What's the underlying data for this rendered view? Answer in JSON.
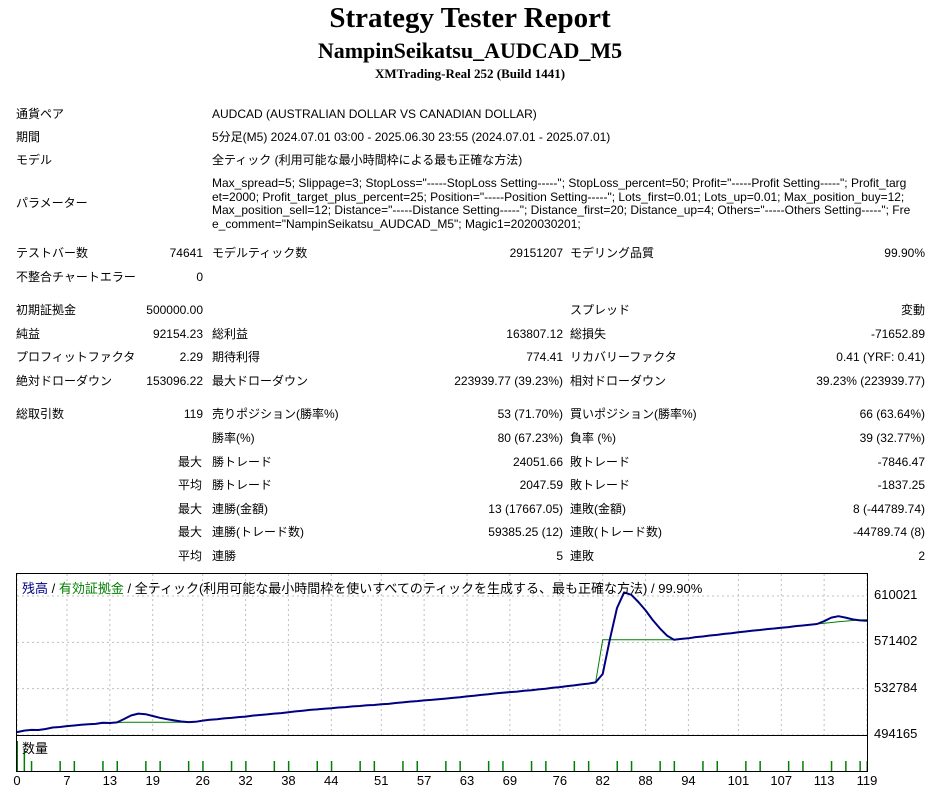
{
  "report": {
    "title": "Strategy Tester Report",
    "subtitle": "NampinSeikatsu_AUDCAD_M5",
    "server": "XMTrading-Real 252 (Build 1441)"
  },
  "info": {
    "symbol_label": "通貨ペア",
    "symbol_value": "AUDCAD (AUSTRALIAN DOLLAR VS CANADIAN DOLLAR)",
    "period_label": "期間",
    "period_value": "5分足(M5) 2024.07.01 03:00 - 2025.06.30 23:55 (2024.07.01 - 2025.07.01)",
    "model_label": "モデル",
    "model_value": "全ティック (利用可能な最小時間枠による最も正確な方法)",
    "params_label": "パラメーター",
    "params_value": "Max_spread=5; Slippage=3; StopLoss=\"-----StopLoss Setting-----\"; StopLoss_percent=50; Profit=\"-----Profit Setting-----\"; Profit_target=2000; Profit_target_plus_percent=25; Position=\"-----Position Setting-----\"; Lots_first=0.01; Lots_up=0.01; Max_position_buy=12; Max_position_sell=12; Distance=\"-----Distance Setting-----\"; Distance_first=20; Distance_up=4; Others=\"-----Others Setting-----\"; Free_comment=\"NampinSeikatsu_AUDCAD_M5\"; Magic1=2020030201;"
  },
  "stats": {
    "bars_label": "テストバー数",
    "bars_value": "74641",
    "ticks_label": "モデルティック数",
    "ticks_value": "29151207",
    "quality_label": "モデリング品質",
    "quality_value": "99.90%",
    "mismatch_label": "不整合チャートエラー",
    "mismatch_value": "0",
    "deposit_label": "初期証拠金",
    "deposit_value": "500000.00",
    "spread_label": "スプレッド",
    "spread_value": "変動",
    "net_label": "純益",
    "net_value": "92154.23",
    "gross_profit_label": "総利益",
    "gross_profit_value": "163807.12",
    "gross_loss_label": "総損失",
    "gross_loss_value": "-71652.89",
    "pf_label": "プロフィットファクタ",
    "pf_value": "2.29",
    "payoff_label": "期待利得",
    "payoff_value": "774.41",
    "recovery_label": "リカバリーファクタ",
    "recovery_value": "0.41 (YRF: 0.41)",
    "abs_dd_label": "絶対ドローダウン",
    "abs_dd_value": "153096.22",
    "max_dd_label": "最大ドローダウン",
    "max_dd_value": "223939.77 (39.23%)",
    "rel_dd_label": "相対ドローダウン",
    "rel_dd_value": "39.23% (223939.77)",
    "trades_label": "総取引数",
    "trades_value": "119",
    "short_label": "売りポジション(勝率%)",
    "short_value": "53 (71.70%)",
    "long_label": "買いポジション(勝率%)",
    "long_value": "66 (63.64%)",
    "win_label": "勝率(%)",
    "win_value": "80 (67.23%)",
    "loss_label": "負率 (%)",
    "loss_value": "39 (32.77%)",
    "max_label": "最大",
    "avg_label": "平均",
    "largest_win_label": "勝トレード",
    "largest_win_value": "24051.66",
    "largest_loss_label": "敗トレード",
    "largest_loss_value": "-7846.47",
    "avg_win_label": "勝トレード",
    "avg_win_value": "2047.59",
    "avg_loss_label": "敗トレード",
    "avg_loss_value": "-1837.25",
    "cons_win_amt_label": "連勝(金額)",
    "cons_win_amt_value": "13 (17667.05)",
    "cons_loss_amt_label": "連敗(金額)",
    "cons_loss_amt_value": "8 (-44789.74)",
    "cons_win_trd_label": "連勝(トレード数)",
    "cons_win_trd_value": "59385.25 (12)",
    "cons_loss_trd_label": "連敗(トレード数)",
    "cons_loss_trd_value": "-44789.74 (8)",
    "avg_cons_win_label": "連勝",
    "avg_cons_win_value": "5",
    "avg_cons_loss_label": "連敗",
    "avg_cons_loss_value": "2"
  },
  "chart_data": {
    "type": "line",
    "legend": {
      "balance": "残高",
      "sep1": " / ",
      "equity": "有効証拠金",
      "sep2": " / ",
      "desc": "全ティック(利用可能な最小時間枠を使いすべてのティックを生成する、最も正確な方法) / 99.90%"
    },
    "colors": {
      "balance": "#000080",
      "equity": "#008000",
      "volume": "#008000",
      "grid": "#bfbfbf"
    },
    "ylim": [
      494165,
      610021
    ],
    "y_ticks": [
      "610021",
      "571402",
      "532784",
      "494165"
    ],
    "x_ticks": [
      "0",
      "7",
      "13",
      "19",
      "26",
      "32",
      "38",
      "44",
      "51",
      "57",
      "63",
      "69",
      "76",
      "82",
      "88",
      "94",
      "101",
      "107",
      "113",
      "119"
    ],
    "volume_label": "数量",
    "series": [
      {
        "name": "残高",
        "x": [
          0,
          1,
          2,
          3,
          4,
          5,
          6,
          7,
          8,
          9,
          10,
          11,
          12,
          13,
          14,
          15,
          16,
          17,
          18,
          19,
          20,
          21,
          22,
          23,
          24,
          25,
          26,
          27,
          28,
          29,
          30,
          31,
          32,
          33,
          34,
          35,
          36,
          37,
          38,
          39,
          40,
          41,
          42,
          43,
          44,
          45,
          46,
          47,
          48,
          49,
          50,
          51,
          52,
          53,
          54,
          55,
          56,
          57,
          58,
          59,
          60,
          61,
          62,
          63,
          64,
          65,
          66,
          67,
          68,
          69,
          70,
          71,
          72,
          73,
          74,
          75,
          76,
          77,
          78,
          79,
          80,
          81,
          82,
          83,
          84,
          85,
          86,
          87,
          88,
          89,
          90,
          91,
          92,
          93,
          94,
          95,
          96,
          97,
          98,
          99,
          100,
          101,
          102,
          103,
          104,
          105,
          106,
          107,
          108,
          109,
          110,
          111,
          112,
          113,
          114,
          115,
          116,
          117,
          118,
          119
        ],
        "values": [
          496500,
          497800,
          498200,
          498600,
          499200,
          500400,
          500800,
          501500,
          502100,
          502600,
          503000,
          503400,
          503800,
          504200,
          504500,
          504800,
          504800,
          504800,
          504800,
          504800,
          504800,
          504800,
          504800,
          504800,
          504800,
          505200,
          506200,
          506800,
          507300,
          507800,
          508400,
          509000,
          509500,
          510200,
          510800,
          511300,
          511800,
          512400,
          513100,
          513800,
          514400,
          515000,
          515500,
          516000,
          516500,
          517000,
          517400,
          517900,
          518300,
          518700,
          519200,
          519700,
          520100,
          520700,
          521300,
          521900,
          522400,
          522900,
          523400,
          523900,
          524500,
          525000,
          525600,
          526200,
          526900,
          527500,
          528100,
          528700,
          529300,
          529800,
          530300,
          530900,
          531500,
          532100,
          532700,
          533400,
          534100,
          534800,
          535500,
          536200,
          537000,
          537800,
          573500,
          573500,
          573500,
          573500,
          573500,
          573500,
          573500,
          573500,
          573500,
          573500,
          573500,
          574000,
          574800,
          575700,
          576300,
          577000,
          577600,
          578300,
          579000,
          579700,
          580400,
          581100,
          581700,
          582300,
          582900,
          583500,
          584100,
          584800,
          585400,
          586000,
          586700,
          587300,
          587900,
          588500,
          589100,
          589600,
          590100,
          590200
        ]
      },
      {
        "name": "有効証拠金",
        "x": [
          0,
          1,
          2,
          3,
          4,
          5,
          6,
          7,
          8,
          9,
          10,
          11,
          12,
          13,
          14,
          15,
          16,
          17,
          18,
          19,
          20,
          21,
          22,
          23,
          24,
          25,
          26,
          27,
          28,
          29,
          30,
          31,
          32,
          33,
          34,
          35,
          36,
          37,
          38,
          39,
          40,
          41,
          42,
          43,
          44,
          45,
          46,
          47,
          48,
          49,
          50,
          51,
          52,
          53,
          54,
          55,
          56,
          57,
          58,
          59,
          60,
          61,
          62,
          63,
          64,
          65,
          66,
          67,
          68,
          69,
          70,
          71,
          72,
          73,
          74,
          75,
          76,
          77,
          78,
          79,
          80,
          81,
          82,
          83,
          84,
          85,
          86,
          87,
          88,
          89,
          90,
          91,
          92,
          93,
          94,
          95,
          96,
          97,
          98,
          99,
          100,
          101,
          102,
          103,
          104,
          105,
          106,
          107,
          108,
          109,
          110,
          111,
          112,
          113,
          114,
          115,
          116,
          117,
          118,
          119
        ],
        "values": [
          496500,
          497800,
          498400,
          498300,
          499200,
          500400,
          500800,
          501600,
          502100,
          502700,
          503100,
          503400,
          504300,
          504200,
          504700,
          507500,
          510500,
          512000,
          511500,
          510000,
          508500,
          507300,
          506300,
          505400,
          504900,
          505200,
          506200,
          506900,
          507300,
          508000,
          508400,
          509100,
          509500,
          510300,
          510800,
          511300,
          512000,
          512400,
          513200,
          513800,
          514400,
          515100,
          515500,
          516100,
          516500,
          517100,
          517400,
          518000,
          518300,
          518900,
          519200,
          519800,
          520100,
          520800,
          521300,
          522000,
          522400,
          523000,
          523400,
          524000,
          524500,
          525100,
          525600,
          526300,
          526900,
          527600,
          528100,
          528800,
          529300,
          529900,
          530300,
          531000,
          531500,
          532200,
          532700,
          533500,
          534100,
          534900,
          535500,
          536300,
          537000,
          538000,
          545000,
          574000,
          600000,
          613000,
          611000,
          605000,
          598000,
          590000,
          583000,
          577000,
          573500,
          574300,
          574800,
          575800,
          576300,
          577100,
          577600,
          578400,
          579000,
          579800,
          580400,
          581200,
          581700,
          582400,
          582900,
          583600,
          584100,
          584900,
          585400,
          586100,
          586700,
          589000,
          592000,
          593200,
          592000,
          590500,
          589700,
          589400
        ]
      }
    ],
    "volume": [
      3,
      2,
      1,
      0,
      0,
      0,
      1,
      0,
      1,
      0,
      0,
      0,
      1,
      0,
      1,
      0,
      0,
      0,
      1,
      0,
      1,
      0,
      0,
      0,
      1,
      0,
      1,
      0,
      0,
      0,
      1,
      0,
      1,
      0,
      0,
      0,
      1,
      0,
      1,
      0,
      0,
      0,
      1,
      0,
      1,
      0,
      0,
      0,
      1,
      0,
      1,
      0,
      0,
      0,
      1,
      0,
      1,
      0,
      0,
      0,
      1,
      0,
      1,
      0,
      0,
      0,
      1,
      0,
      1,
      0,
      0,
      0,
      1,
      0,
      1,
      0,
      0,
      0,
      1,
      0,
      1,
      0,
      0,
      0,
      1,
      0,
      1,
      0,
      0,
      0,
      1,
      0,
      1,
      0,
      0,
      0,
      1,
      0,
      1,
      0,
      0,
      0,
      1,
      0,
      1,
      0,
      0,
      0,
      1,
      0,
      1,
      0,
      0,
      0,
      1,
      0,
      1,
      0,
      1,
      1
    ]
  }
}
